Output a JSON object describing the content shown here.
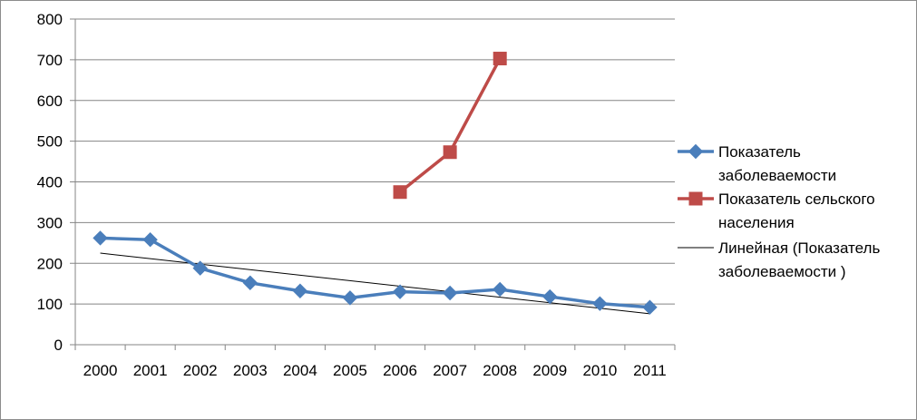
{
  "chart_data": {
    "type": "line",
    "title": "",
    "xlabel": "",
    "ylabel": "",
    "categories": [
      "2000",
      "2001",
      "2002",
      "2003",
      "2004",
      "2005",
      "2006",
      "2007",
      "2008",
      "2009",
      "2010",
      "2011"
    ],
    "ylim": [
      0,
      800
    ],
    "yticks": [
      0,
      100,
      200,
      300,
      400,
      500,
      600,
      700,
      800
    ],
    "grid": "horizontal",
    "legend_position": "right",
    "series": [
      {
        "name": "Показатель заболеваемости",
        "legend_lines": [
          "Показатель",
          "заболеваемости"
        ],
        "color": "#4a7ebb",
        "marker": "diamond",
        "values": [
          262,
          258,
          188,
          152,
          132,
          115,
          130,
          127,
          136,
          118,
          101,
          92
        ]
      },
      {
        "name": "Показатель сельского населения",
        "legend_lines": [
          "Показатель сельского",
          "населения"
        ],
        "color": "#be4b48",
        "marker": "square",
        "values": [
          null,
          null,
          null,
          null,
          null,
          null,
          375,
          473,
          703,
          null,
          null,
          null
        ]
      },
      {
        "name": "Линейная (Показатель заболеваемости )",
        "legend_lines": [
          "Линейная (Показатель",
          "заболеваемости )"
        ],
        "color": "#000000",
        "marker": "none",
        "trendline": true,
        "values": [
          225,
          211,
          198,
          184,
          171,
          157,
          144,
          130,
          116,
          103,
          89,
          76
        ]
      }
    ]
  }
}
